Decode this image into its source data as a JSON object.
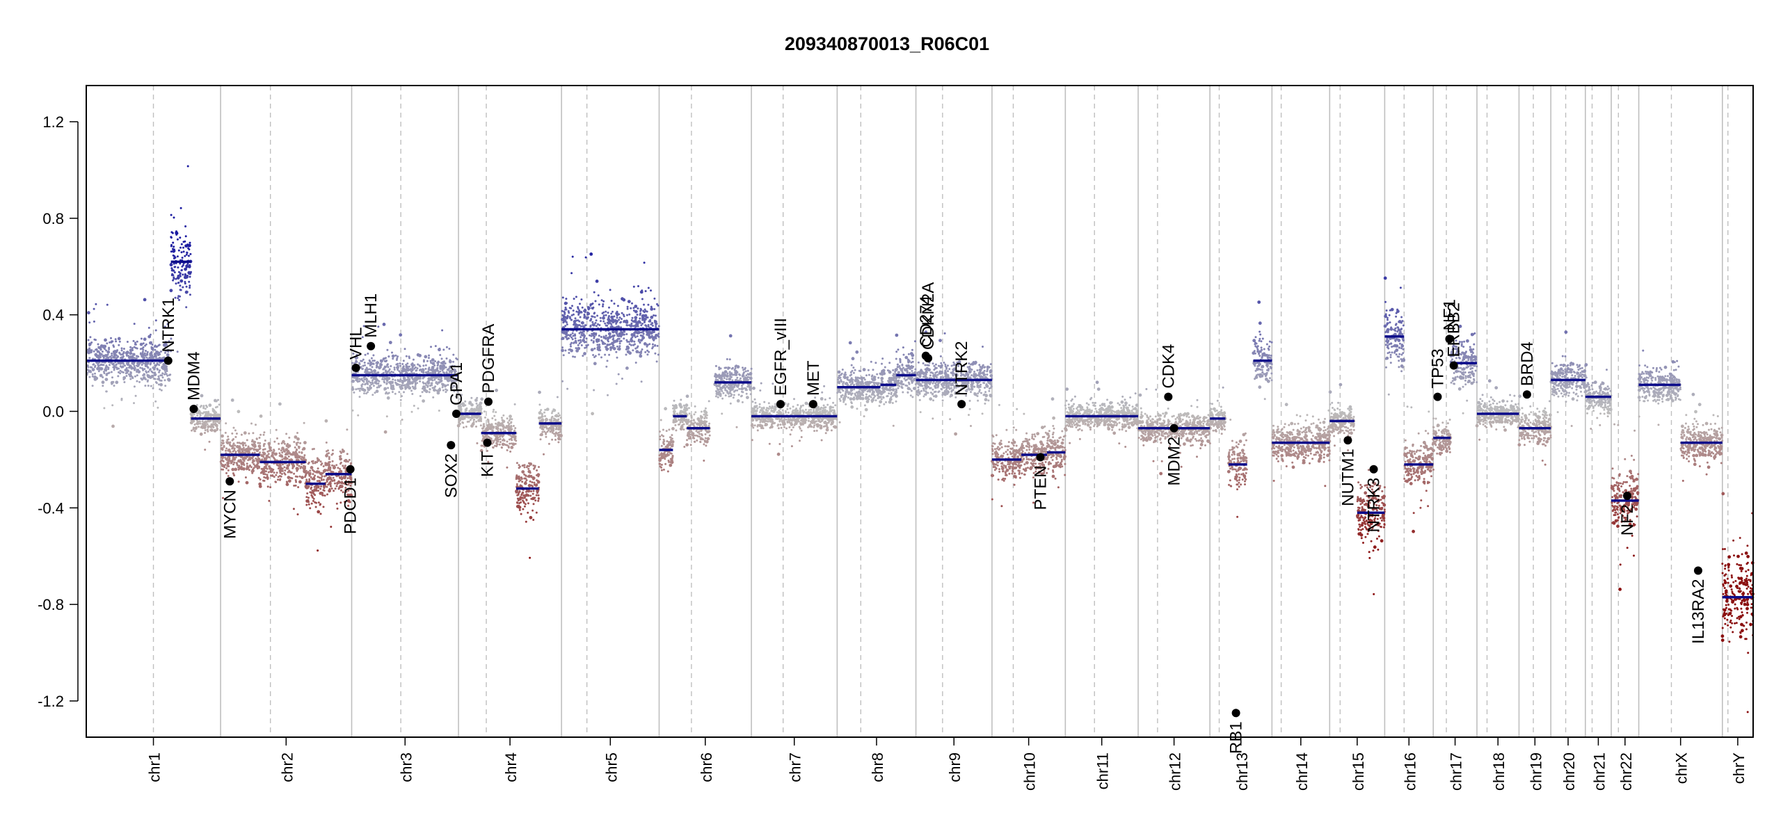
{
  "chart_data": {
    "type": "scatter",
    "title": "209340870013_R06C01",
    "xlabel": "",
    "ylabel": "",
    "ylim": [
      -1.35,
      1.35
    ],
    "y_ticks": [
      -1.2,
      -0.8,
      -0.4,
      0.0,
      0.4,
      0.8,
      1.2
    ],
    "y_tick_labels": [
      "-1.2",
      "-0.8",
      "-0.4",
      "0.0",
      "0.4",
      "0.8",
      "1.2"
    ],
    "x_axis": "genome position by chromosome",
    "grid": false,
    "colors": {
      "gain": "#1a1aa0",
      "loss": "#8b1010",
      "neutral": "#bdbdbd",
      "segment": "#0b0b8a",
      "gene_point": "#000000",
      "boundary": "#bfbfbf"
    },
    "chromosomes": [
      {
        "name": "chr1",
        "length": 249,
        "centromere": 0.5
      },
      {
        "name": "chr2",
        "length": 243,
        "centromere": 0.38
      },
      {
        "name": "chr3",
        "length": 198,
        "centromere": 0.46
      },
      {
        "name": "chr4",
        "length": 191,
        "centromere": 0.27
      },
      {
        "name": "chr5",
        "length": 181,
        "centromere": 0.26
      },
      {
        "name": "chr6",
        "length": 171,
        "centromere": 0.35
      },
      {
        "name": "chr7",
        "length": 159,
        "centromere": 0.37
      },
      {
        "name": "chr8",
        "length": 146,
        "centromere": 0.3
      },
      {
        "name": "chr9",
        "length": 141,
        "centromere": 0.35
      },
      {
        "name": "chr10",
        "length": 136,
        "centromere": 0.29
      },
      {
        "name": "chr11",
        "length": 135,
        "centromere": 0.4
      },
      {
        "name": "chr12",
        "length": 133,
        "centromere": 0.27
      },
      {
        "name": "chr13",
        "length": 115,
        "centromere": 0.15
      },
      {
        "name": "chr14",
        "length": 107,
        "centromere": 0.16
      },
      {
        "name": "chr15",
        "length": 102,
        "centromere": 0.19
      },
      {
        "name": "chr16",
        "length": 90,
        "centromere": 0.4
      },
      {
        "name": "chr17",
        "length": 81,
        "centromere": 0.3
      },
      {
        "name": "chr18",
        "length": 78,
        "centromere": 0.24
      },
      {
        "name": "chr19",
        "length": 59,
        "centromere": 0.45
      },
      {
        "name": "chr20",
        "length": 64,
        "centromere": 0.43
      },
      {
        "name": "chr21",
        "length": 48,
        "centromere": 0.26
      },
      {
        "name": "chr22",
        "length": 51,
        "centromere": 0.26
      },
      {
        "name": "chrX",
        "length": 155,
        "centromere": 0.39
      },
      {
        "name": "chrY",
        "length": 57,
        "centromere": 0.18
      }
    ],
    "segments": [
      {
        "chr": "chr1",
        "start": 0.0,
        "end": 0.63,
        "value": 0.21
      },
      {
        "chr": "chr1",
        "start": 0.63,
        "end": 0.78,
        "value": 0.62
      },
      {
        "chr": "chr1",
        "start": 0.78,
        "end": 1.0,
        "value": -0.03
      },
      {
        "chr": "chr2",
        "start": 0.0,
        "end": 0.3,
        "value": -0.18
      },
      {
        "chr": "chr2",
        "start": 0.3,
        "end": 0.65,
        "value": -0.21
      },
      {
        "chr": "chr2",
        "start": 0.65,
        "end": 0.8,
        "value": -0.3
      },
      {
        "chr": "chr2",
        "start": 0.8,
        "end": 1.0,
        "value": -0.26
      },
      {
        "chr": "chr3",
        "start": 0.0,
        "end": 1.0,
        "value": 0.15
      },
      {
        "chr": "chr4",
        "start": 0.0,
        "end": 0.22,
        "value": -0.01
      },
      {
        "chr": "chr4",
        "start": 0.22,
        "end": 0.56,
        "value": -0.09
      },
      {
        "chr": "chr4",
        "start": 0.56,
        "end": 0.78,
        "value": -0.32
      },
      {
        "chr": "chr4",
        "start": 0.78,
        "end": 1.0,
        "value": -0.05
      },
      {
        "chr": "chr5",
        "start": 0.0,
        "end": 1.0,
        "value": 0.34
      },
      {
        "chr": "chr6",
        "start": 0.0,
        "end": 0.15,
        "value": -0.16
      },
      {
        "chr": "chr6",
        "start": 0.15,
        "end": 0.3,
        "value": -0.02
      },
      {
        "chr": "chr6",
        "start": 0.3,
        "end": 0.55,
        "value": -0.07
      },
      {
        "chr": "chr6",
        "start": 0.6,
        "end": 1.0,
        "value": 0.12
      },
      {
        "chr": "chr7",
        "start": 0.0,
        "end": 1.0,
        "value": -0.02
      },
      {
        "chr": "chr8",
        "start": 0.0,
        "end": 0.55,
        "value": 0.1
      },
      {
        "chr": "chr8",
        "start": 0.55,
        "end": 0.75,
        "value": 0.11
      },
      {
        "chr": "chr8",
        "start": 0.75,
        "end": 1.0,
        "value": 0.15
      },
      {
        "chr": "chr9",
        "start": 0.0,
        "end": 0.3,
        "value": 0.13
      },
      {
        "chr": "chr9",
        "start": 0.3,
        "end": 1.0,
        "value": 0.13
      },
      {
        "chr": "chr10",
        "start": 0.0,
        "end": 0.4,
        "value": -0.2
      },
      {
        "chr": "chr10",
        "start": 0.4,
        "end": 0.75,
        "value": -0.18
      },
      {
        "chr": "chr10",
        "start": 0.75,
        "end": 1.0,
        "value": -0.17
      },
      {
        "chr": "chr11",
        "start": 0.0,
        "end": 1.0,
        "value": -0.02
      },
      {
        "chr": "chr12",
        "start": 0.0,
        "end": 1.0,
        "value": -0.07
      },
      {
        "chr": "chr13",
        "start": 0.0,
        "end": 0.25,
        "value": -0.03
      },
      {
        "chr": "chr13",
        "start": 0.3,
        "end": 0.6,
        "value": -0.22
      },
      {
        "chr": "chr13",
        "start": 0.7,
        "end": 1.0,
        "value": 0.21
      },
      {
        "chr": "chr14",
        "start": 0.0,
        "end": 0.55,
        "value": -0.13
      },
      {
        "chr": "chr14",
        "start": 0.55,
        "end": 1.0,
        "value": -0.13
      },
      {
        "chr": "chr15",
        "start": 0.0,
        "end": 0.45,
        "value": -0.04
      },
      {
        "chr": "chr15",
        "start": 0.5,
        "end": 1.0,
        "value": -0.42
      },
      {
        "chr": "chr16",
        "start": 0.0,
        "end": 0.4,
        "value": 0.31
      },
      {
        "chr": "chr16",
        "start": 0.4,
        "end": 1.0,
        "value": -0.22
      },
      {
        "chr": "chr17",
        "start": 0.0,
        "end": 0.4,
        "value": -0.11
      },
      {
        "chr": "chr17",
        "start": 0.4,
        "end": 1.0,
        "value": 0.2
      },
      {
        "chr": "chr18",
        "start": 0.0,
        "end": 1.0,
        "value": -0.01
      },
      {
        "chr": "chr19",
        "start": 0.0,
        "end": 1.0,
        "value": -0.07
      },
      {
        "chr": "chr20",
        "start": 0.0,
        "end": 1.0,
        "value": 0.13
      },
      {
        "chr": "chr21",
        "start": 0.0,
        "end": 1.0,
        "value": 0.06
      },
      {
        "chr": "chr22",
        "start": 0.0,
        "end": 1.0,
        "value": -0.37
      },
      {
        "chrX": "",
        "chr": "chrX",
        "start": 0.0,
        "end": 0.5,
        "value": 0.11
      },
      {
        "chr": "chrX",
        "start": 0.5,
        "end": 1.0,
        "value": -0.13
      },
      {
        "chr": "chrY",
        "start": 0.0,
        "end": 1.0,
        "value": -0.77
      }
    ],
    "genes": [
      {
        "name": "NTRK1",
        "chr": "chr1",
        "pos": 0.61,
        "value": 0.21
      },
      {
        "name": "MDM4",
        "chr": "chr1",
        "pos": 0.8,
        "value": 0.01
      },
      {
        "name": "MYCN",
        "chr": "chr2",
        "pos": 0.07,
        "value": -0.29
      },
      {
        "name": "PDCD1",
        "chr": "chr2",
        "pos": 0.99,
        "value": -0.24
      },
      {
        "name": "VHL",
        "chr": "chr3",
        "pos": 0.04,
        "value": 0.18
      },
      {
        "name": "MLH1",
        "chr": "chr3",
        "pos": 0.18,
        "value": 0.27
      },
      {
        "name": "SOX2",
        "chr": "chr3",
        "pos": 0.93,
        "value": -0.14
      },
      {
        "name": "GPA1",
        "chr": "chr3",
        "pos": 0.98,
        "value": -0.01
      },
      {
        "name": "KIT",
        "chr": "chr4",
        "pos": 0.28,
        "value": -0.13
      },
      {
        "name": "PDGFRA",
        "chr": "chr4",
        "pos": 0.29,
        "value": 0.04
      },
      {
        "name": "EGFR_vIII",
        "chr": "chr7",
        "pos": 0.34,
        "value": 0.03
      },
      {
        "name": "MET",
        "chr": "chr7",
        "pos": 0.72,
        "value": 0.03
      },
      {
        "name": "CDKN2A",
        "chr": "chr9",
        "pos": 0.16,
        "value": 0.22
      },
      {
        "name": "CD274",
        "chr": "chr9",
        "pos": 0.13,
        "value": 0.23
      },
      {
        "name": "NTRK2",
        "chr": "chr9",
        "pos": 0.6,
        "value": 0.03
      },
      {
        "name": "PTEN",
        "chr": "chr10",
        "pos": 0.66,
        "value": -0.19
      },
      {
        "name": "CDK4",
        "chr": "chr12",
        "pos": 0.42,
        "value": 0.06
      },
      {
        "name": "MDM2",
        "chr": "chr12",
        "pos": 0.5,
        "value": -0.07
      },
      {
        "name": "RB1",
        "chr": "chr13",
        "pos": 0.42,
        "value": -1.25
      },
      {
        "name": "NUTM1",
        "chr": "chr15",
        "pos": 0.33,
        "value": -0.12
      },
      {
        "name": "NTRK3",
        "chr": "chr15",
        "pos": 0.8,
        "value": -0.24
      },
      {
        "name": "TP53",
        "chr": "chr17",
        "pos": 0.1,
        "value": 0.06
      },
      {
        "name": "NF1",
        "chr": "chr17",
        "pos": 0.37,
        "value": 0.3
      },
      {
        "name": "ERBB2",
        "chr": "chr17",
        "pos": 0.47,
        "value": 0.19
      },
      {
        "name": "BRD4",
        "chr": "chr19",
        "pos": 0.25,
        "value": 0.07
      },
      {
        "name": "NF2",
        "chr": "chr22",
        "pos": 0.58,
        "value": -0.35
      },
      {
        "name": "IL13RA2",
        "chr": "chrX",
        "pos": 0.71,
        "value": -0.66
      }
    ]
  }
}
